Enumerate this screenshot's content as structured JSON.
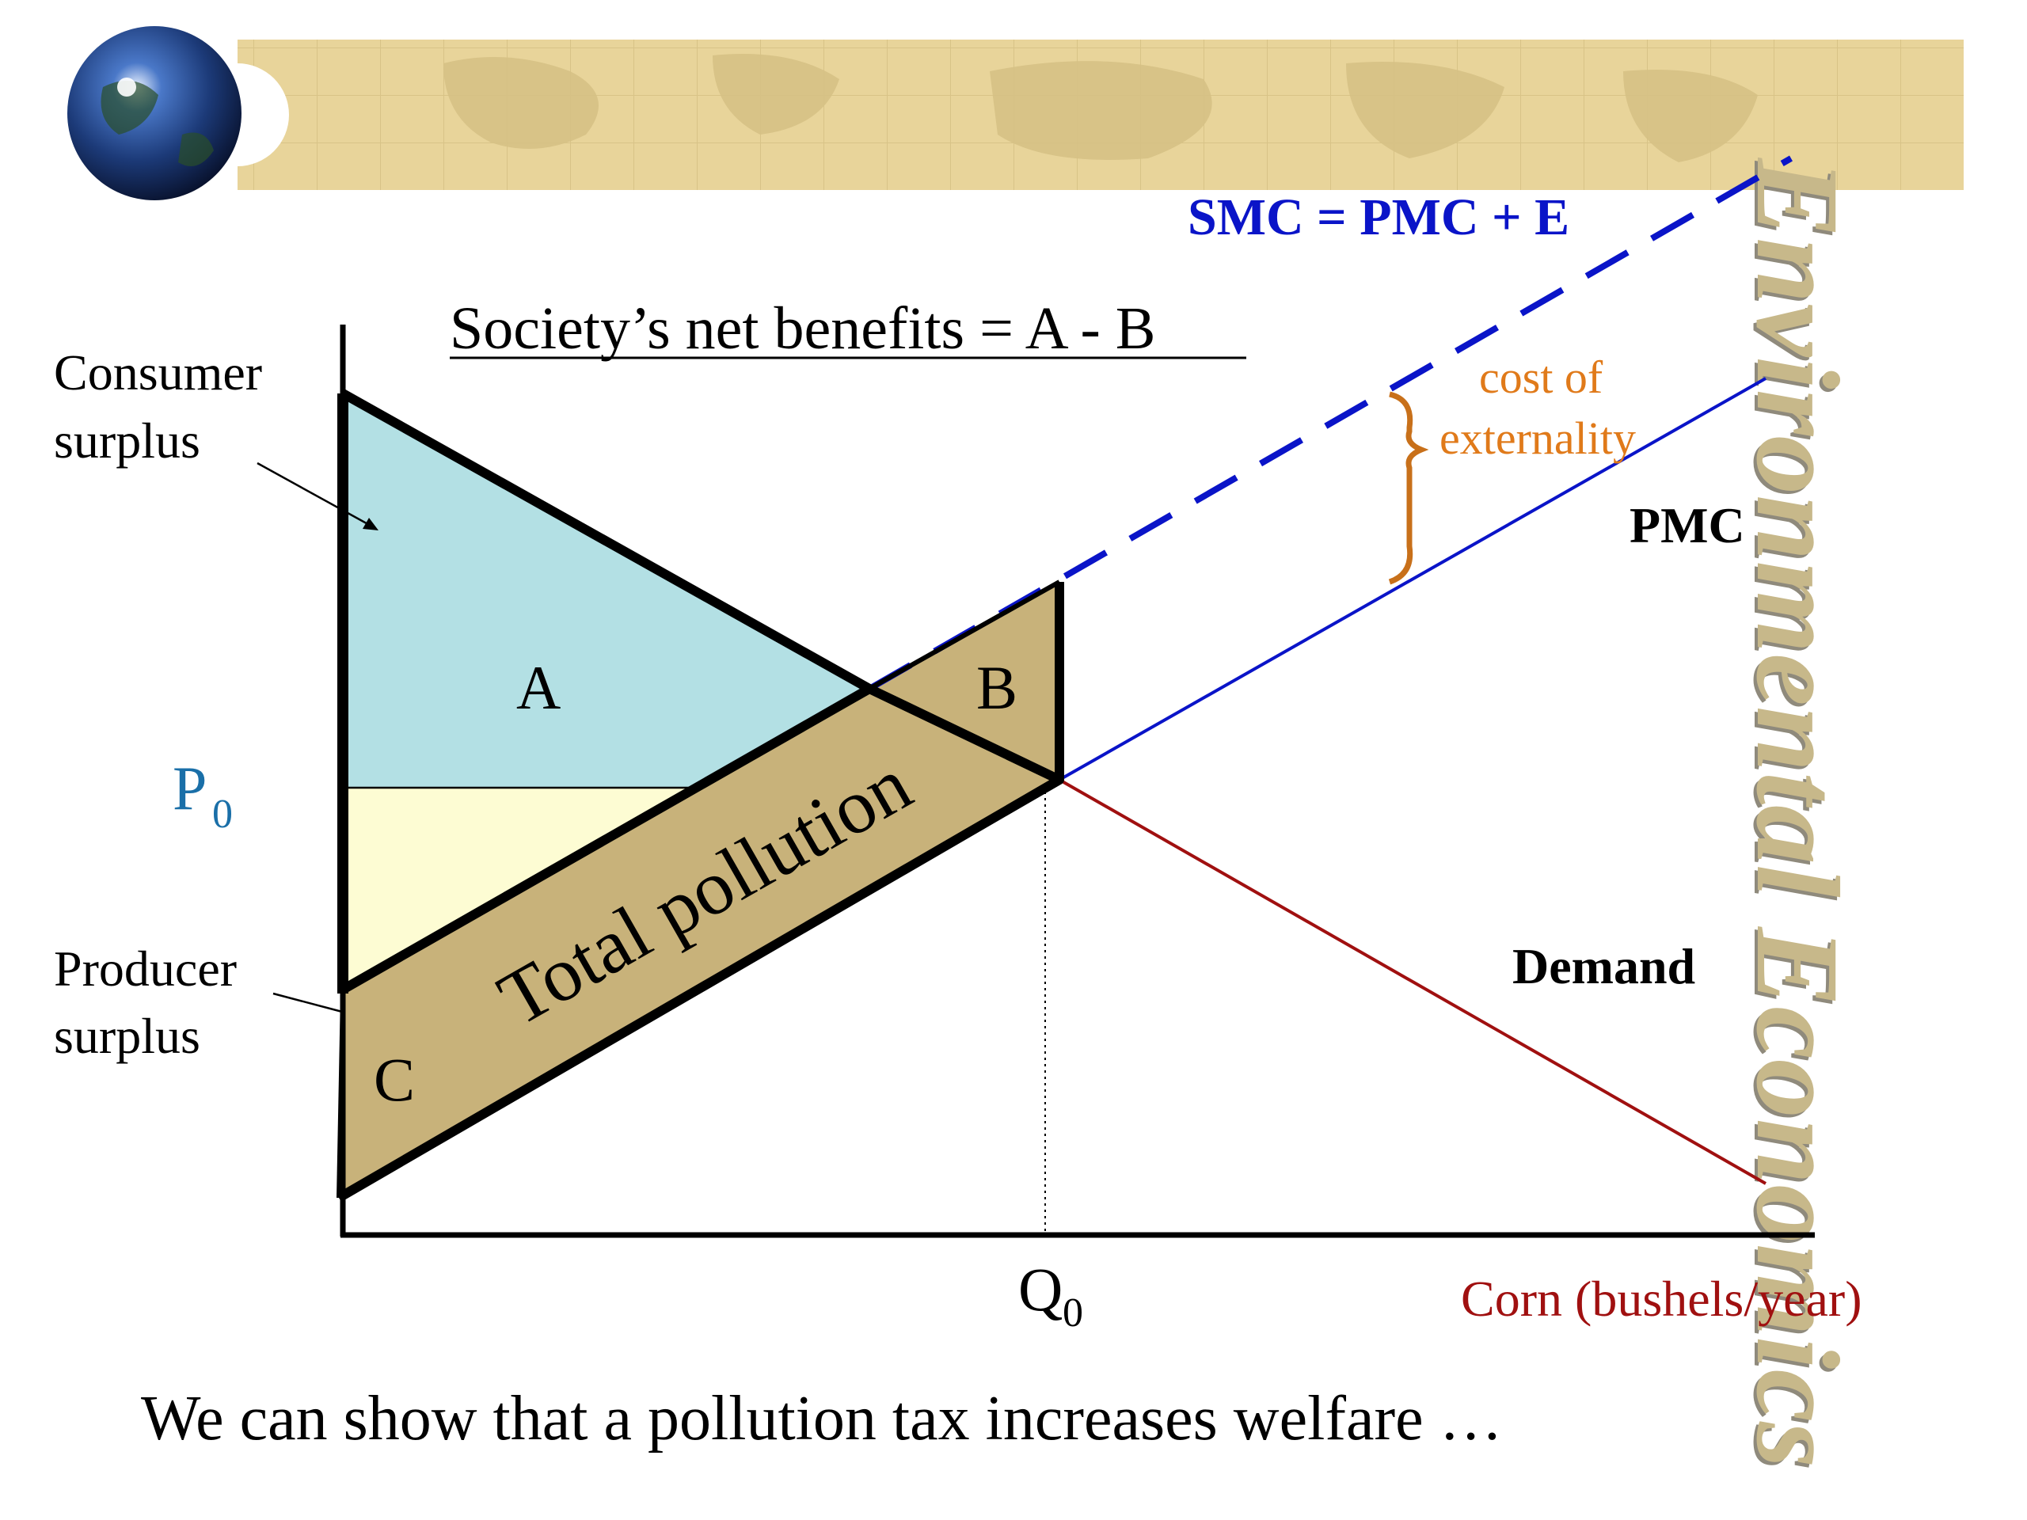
{
  "slide": {
    "side_title": "Environmental Economics",
    "heading": "Society’s net benefits = A - B",
    "caption": "We can show that a pollution tax increases welfare …"
  },
  "labels": {
    "smc": "SMC = PMC + E",
    "cost_of_externality_line1": "cost of",
    "cost_of_externality_line2": "externality",
    "pmc": "PMC",
    "demand": "Demand",
    "area_a": "A",
    "area_b": "B",
    "area_c": "C",
    "total_pollution": "Total pollution",
    "consumer_surplus_line1": "Consumer",
    "consumer_surplus_line2": "surplus",
    "producer_surplus_line1": "Producer",
    "producer_surplus_line2": "surplus",
    "p0_main": "P",
    "p0_sub": "0",
    "q0_main": "Q",
    "q0_sub": "0",
    "x_axis": "Corn (bushels/year)"
  },
  "colors": {
    "smc": "#0a14c8",
    "pmc": "#0a14c8",
    "demand": "#a01010",
    "cost_label": "#e07a1a",
    "brace": "#c8701a",
    "p0": "#1a6fa8",
    "x_axis_label": "#a01010",
    "consumer_fill": "#b3e0e4",
    "producer_fill": "#fdfcd3",
    "pollution_fill": "#c8b27a",
    "banner": "#e8d49a",
    "side_title": "#c7b88a"
  },
  "icons": {
    "globe": "globe-icon"
  }
}
